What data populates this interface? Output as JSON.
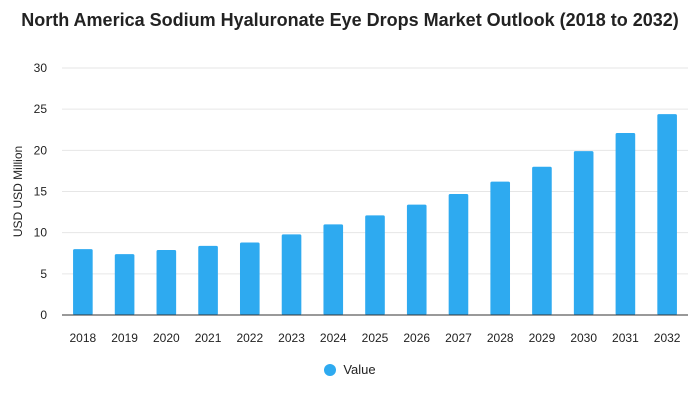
{
  "chart_data": {
    "type": "bar",
    "title": "North America Sodium Hyaluronate Eye Drops Market Outlook (2018 to 2032)",
    "xlabel": "",
    "ylabel": "USD USD Million",
    "categories": [
      "2018",
      "2019",
      "2020",
      "2021",
      "2022",
      "2023",
      "2024",
      "2025",
      "2026",
      "2027",
      "2028",
      "2029",
      "2030",
      "2031",
      "2032"
    ],
    "series": [
      {
        "name": "Value",
        "values": [
          8.0,
          7.4,
          7.9,
          8.4,
          8.8,
          9.8,
          11.0,
          12.1,
          13.4,
          14.7,
          16.2,
          18.0,
          19.9,
          22.1,
          24.4
        ],
        "color": "#2eaaf0"
      }
    ],
    "ylim": [
      0,
      30
    ],
    "yticks": [
      0,
      5,
      10,
      15,
      20,
      25,
      30
    ],
    "grid": true,
    "legend_position": "bottom-center",
    "colors": {
      "gridline": "#e6e6e6",
      "axis": "#333333"
    }
  }
}
